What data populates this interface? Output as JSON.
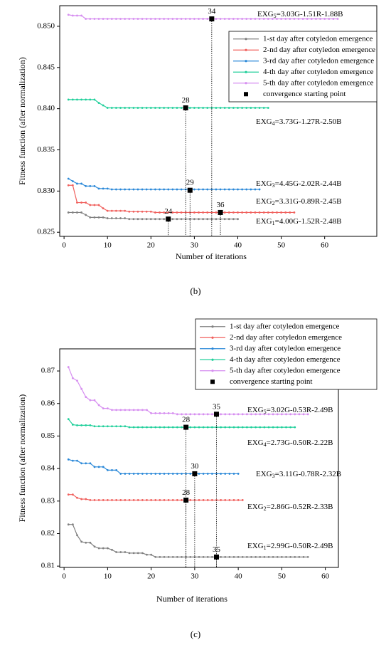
{
  "chart_data": [
    {
      "type": "line",
      "panel": "(b)",
      "xlabel": "Number of iterations",
      "ylabel": "Fitness function (after normalization)",
      "xlim": [
        -1,
        72
      ],
      "ylim": [
        0.8245,
        0.8525
      ],
      "xticks": [
        0,
        10,
        20,
        30,
        40,
        50,
        60
      ],
      "yticks": [
        0.825,
        {
          "value": 0.83,
          "label": "0.830"
        },
        0.835,
        {
          "value": 0.84,
          "label": "0.840"
        },
        0.845,
        {
          "value": 0.85,
          "label": "0.850"
        }
      ],
      "x": [
        1,
        2,
        3,
        4,
        5,
        6,
        7,
        8,
        9,
        10,
        11,
        12,
        13,
        14,
        15,
        16,
        17,
        18,
        19,
        20,
        21,
        22,
        23,
        24,
        25,
        26,
        27,
        28,
        29,
        30,
        31,
        32,
        33,
        34,
        35,
        36,
        37,
        38,
        39,
        40,
        41,
        42,
        43,
        44,
        45,
        46,
        47,
        48,
        49,
        50,
        51,
        52,
        53,
        54,
        55,
        56,
        57,
        58,
        59,
        60,
        61,
        62,
        63
      ],
      "series": [
        {
          "name": "1-st day after cotyledon emergence",
          "color": "#808080",
          "values": [
            0.8274,
            0.8274,
            0.8274,
            0.8274,
            0.8271,
            0.8268,
            0.8268,
            0.8268,
            0.8268,
            0.8267,
            0.8267,
            0.8267,
            0.8267,
            0.8267,
            0.8266,
            0.8266,
            0.8266,
            0.8266,
            0.8266,
            0.8266,
            0.8266,
            0.8266,
            0.8266,
            0.8266,
            0.8266,
            0.8266,
            0.8266,
            0.8266,
            0.8266,
            0.8266,
            0.8266,
            0.8266,
            0.8266,
            0.8266,
            0.8266,
            0.8266,
            0.8266,
            0.8266,
            0.8266,
            0.8266,
            null,
            null,
            null,
            null,
            null,
            null,
            null,
            null,
            null,
            null,
            null,
            null,
            null,
            null,
            null,
            null,
            null,
            null,
            null,
            null,
            null,
            null,
            null
          ]
        },
        {
          "name": "2-nd day after cotyledon emergence",
          "color": "#f0605d",
          "values": [
            0.8307,
            0.8307,
            0.8286,
            0.8286,
            0.8286,
            0.8283,
            0.8283,
            0.8283,
            0.8279,
            0.8276,
            0.8276,
            0.8276,
            0.8276,
            0.8276,
            0.8275,
            0.8275,
            0.8275,
            0.8275,
            0.8275,
            0.8275,
            0.8274,
            0.8274,
            0.8274,
            0.8274,
            0.8274,
            0.8274,
            0.8274,
            0.8274,
            0.8274,
            0.8274,
            0.8274,
            0.8274,
            0.8274,
            0.8274,
            0.8274,
            0.8274,
            0.8274,
            0.8274,
            0.8274,
            0.8274,
            0.8274,
            0.8274,
            0.8274,
            0.8274,
            0.8274,
            0.8274,
            0.8274,
            0.8274,
            0.8274,
            0.8274,
            0.8274,
            0.8274,
            0.8274,
            null,
            null,
            null,
            null,
            null,
            null,
            null,
            null,
            null,
            null
          ]
        },
        {
          "name": "3-rd day after cotyledon emergence",
          "color": "#2a88d8",
          "values": [
            0.8315,
            0.8312,
            0.8309,
            0.8309,
            0.8306,
            0.8306,
            0.8306,
            0.8303,
            0.8303,
            0.8303,
            0.8302,
            0.8302,
            0.8302,
            0.8302,
            0.8302,
            0.8302,
            0.8302,
            0.8302,
            0.8302,
            0.8302,
            0.8302,
            0.8302,
            0.8302,
            0.8302,
            0.8302,
            0.8302,
            0.8302,
            0.8302,
            0.8302,
            0.8302,
            0.8302,
            0.8302,
            0.8302,
            0.8302,
            0.8302,
            0.8302,
            0.8302,
            0.8302,
            0.8302,
            0.8302,
            0.8302,
            0.8302,
            0.8302,
            0.8302,
            0.8302,
            null,
            null,
            null,
            null,
            null,
            null,
            null,
            null,
            null,
            null,
            null,
            null,
            null,
            null,
            null,
            null,
            null,
            null
          ]
        },
        {
          "name": "4-th day after cotyledon emergence",
          "color": "#1fcf9a",
          "values": [
            0.8411,
            0.8411,
            0.8411,
            0.8411,
            0.8411,
            0.8411,
            0.8411,
            0.8407,
            0.8404,
            0.8401,
            0.8401,
            0.8401,
            0.8401,
            0.8401,
            0.8401,
            0.8401,
            0.8401,
            0.8401,
            0.8401,
            0.8401,
            0.8401,
            0.8401,
            0.8401,
            0.8401,
            0.8401,
            0.8401,
            0.8401,
            0.8401,
            0.8401,
            0.8401,
            0.8401,
            0.8401,
            0.8401,
            0.8401,
            0.8401,
            0.8401,
            0.8401,
            0.8401,
            0.8401,
            0.8401,
            0.8401,
            0.8401,
            0.8401,
            0.8401,
            0.8401,
            0.8401,
            0.8401,
            null,
            null,
            null,
            null,
            null,
            null,
            null,
            null,
            null,
            null,
            null,
            null,
            null,
            null,
            null,
            null
          ]
        },
        {
          "name": "5-th day after cotyledon emergence",
          "color": "#d68ef0",
          "values": [
            0.8514,
            0.8513,
            0.8513,
            0.8513,
            0.8509,
            0.8509,
            0.8509,
            0.8509,
            0.8509,
            0.8509,
            0.8509,
            0.8509,
            0.8509,
            0.8509,
            0.8509,
            0.8509,
            0.8509,
            0.8509,
            0.8509,
            0.8509,
            0.8509,
            0.8509,
            0.8509,
            0.8509,
            0.8509,
            0.8509,
            0.8509,
            0.8509,
            0.8509,
            0.8509,
            0.8509,
            0.8509,
            0.8509,
            0.8509,
            0.8509,
            0.8509,
            0.8509,
            0.8509,
            0.8509,
            0.8509,
            0.8509,
            0.8509,
            0.8509,
            0.8509,
            0.8509,
            0.8509,
            0.8509,
            0.8509,
            0.8509,
            0.8509,
            0.8509,
            0.8509,
            0.8509,
            0.8509,
            0.8509,
            0.8509,
            0.8509,
            0.8509,
            0.8509,
            0.8509,
            0.8509,
            0.8509,
            0.8509
          ]
        },
        {
          "name": "convergence starting point",
          "color": "#000000",
          "marker": "square",
          "x": [
            24,
            36,
            29,
            28,
            34
          ],
          "values": [
            0.8266,
            0.8274,
            0.8301,
            0.8401,
            0.8509
          ]
        }
      ],
      "annotations": [
        {
          "text": "EXG",
          "sub": "5",
          "rest": "=3.03G-1.51R-1.88B"
        },
        {
          "text": "EXG",
          "sub": "4",
          "rest": "=3.73G-1.27R-2.50B"
        },
        {
          "text": "EXG",
          "sub": "3",
          "rest": "=4.45G-2.02R-2.44B"
        },
        {
          "text": "EXG",
          "sub": "2",
          "rest": "=3.31G-0.89R-2.45B"
        },
        {
          "text": "EXG",
          "sub": "1",
          "rest": "=4.00G-1.52R-2.48B"
        }
      ]
    },
    {
      "type": "line",
      "panel": "(c)",
      "xlabel": "Number of iterations",
      "ylabel": "Fitness function (after normalization)",
      "xlim": [
        -1,
        63
      ],
      "ylim": [
        0.8096,
        0.8768
      ],
      "xticks": [
        0,
        10,
        20,
        30,
        40,
        50,
        60
      ],
      "yticks": [
        0.81,
        0.82,
        0.83,
        0.84,
        0.85,
        0.86,
        0.87
      ],
      "x": [
        1,
        2,
        3,
        4,
        5,
        6,
        7,
        8,
        9,
        10,
        11,
        12,
        13,
        14,
        15,
        16,
        17,
        18,
        19,
        20,
        21,
        22,
        23,
        24,
        25,
        26,
        27,
        28,
        29,
        30,
        31,
        32,
        33,
        34,
        35,
        36,
        37,
        38,
        39,
        40,
        41,
        42,
        43,
        44,
        45,
        46,
        47,
        48,
        49,
        50,
        51,
        52,
        53,
        54,
        55,
        56
      ],
      "series": [
        {
          "name": "1-st day after cotyledon emergence",
          "color": "#808080",
          "values": [
            0.8228,
            0.8228,
            0.8195,
            0.8175,
            0.8172,
            0.8172,
            0.816,
            0.8155,
            0.8155,
            0.8155,
            0.815,
            0.8143,
            0.8143,
            0.8143,
            0.814,
            0.814,
            0.814,
            0.814,
            0.8135,
            0.8135,
            0.8128,
            0.8128,
            0.8128,
            0.8128,
            0.8128,
            0.8128,
            0.8128,
            0.8128,
            0.8128,
            0.8128,
            0.8128,
            0.8128,
            0.8128,
            0.8128,
            0.8128,
            0.8128,
            0.8128,
            0.8128,
            0.8128,
            0.8128,
            0.8128,
            0.8128,
            0.8128,
            0.8128,
            0.8128,
            0.8128,
            0.8128,
            0.8128,
            0.8128,
            0.8128,
            0.8128,
            0.8128,
            0.8128,
            0.8128,
            0.8128,
            0.8128
          ]
        },
        {
          "name": "2-nd day after cotyledon emergence",
          "color": "#f0605d",
          "values": [
            0.832,
            0.832,
            0.831,
            0.8306,
            0.8306,
            0.8303,
            0.8303,
            0.8303,
            0.8303,
            0.8303,
            0.8303,
            0.8303,
            0.8303,
            0.8303,
            0.8303,
            0.8303,
            0.8303,
            0.8303,
            0.8303,
            0.8303,
            0.8303,
            0.8303,
            0.8303,
            0.8303,
            0.8303,
            0.8303,
            0.8303,
            0.8303,
            0.8303,
            0.8303,
            0.8303,
            0.8303,
            0.8303,
            0.8303,
            0.8303,
            0.8303,
            0.8303,
            0.8303,
            0.8303,
            0.8303,
            0.8303,
            null,
            null,
            null,
            null,
            null,
            null,
            null,
            null,
            null,
            null,
            null,
            null,
            null,
            null,
            null
          ]
        },
        {
          "name": "3-rd day after cotyledon emergence",
          "color": "#2a88d8",
          "values": [
            0.8428,
            0.8424,
            0.8424,
            0.8416,
            0.8416,
            0.8416,
            0.8405,
            0.8405,
            0.8405,
            0.8395,
            0.8395,
            0.8395,
            0.8384,
            0.8384,
            0.8384,
            0.8384,
            0.8384,
            0.8384,
            0.8384,
            0.8384,
            0.8384,
            0.8384,
            0.8384,
            0.8384,
            0.8384,
            0.8384,
            0.8384,
            0.8384,
            0.8384,
            0.8384,
            0.8384,
            0.8384,
            0.8384,
            0.8384,
            0.8384,
            0.8384,
            0.8384,
            0.8384,
            0.8384,
            0.8384,
            null,
            null,
            null,
            null,
            null,
            null,
            null,
            null,
            null,
            null,
            null,
            null,
            null,
            null,
            null,
            null
          ]
        },
        {
          "name": "4-th day after cotyledon emergence",
          "color": "#1fcf9a",
          "values": [
            0.8552,
            0.8535,
            0.8533,
            0.8533,
            0.8533,
            0.8533,
            0.853,
            0.853,
            0.853,
            0.853,
            0.853,
            0.853,
            0.853,
            0.853,
            0.8527,
            0.8527,
            0.8527,
            0.8527,
            0.8527,
            0.8527,
            0.8527,
            0.8527,
            0.8527,
            0.8527,
            0.8527,
            0.8527,
            0.8527,
            0.8527,
            0.8527,
            0.8527,
            0.8527,
            0.8527,
            0.8527,
            0.8527,
            0.8527,
            0.8527,
            0.8527,
            0.8527,
            0.8527,
            0.8527,
            0.8527,
            0.8527,
            0.8527,
            0.8527,
            0.8527,
            0.8527,
            0.8527,
            0.8527,
            0.8527,
            0.8527,
            0.8527,
            0.8527,
            0.8527,
            null,
            null,
            null
          ]
        },
        {
          "name": "5-th day after cotyledon emergence",
          "color": "#d68ef0",
          "values": [
            0.8712,
            0.8678,
            0.867,
            0.8645,
            0.862,
            0.861,
            0.861,
            0.8595,
            0.8585,
            0.8585,
            0.858,
            0.858,
            0.858,
            0.858,
            0.858,
            0.858,
            0.858,
            0.858,
            0.858,
            0.857,
            0.857,
            0.857,
            0.857,
            0.857,
            0.857,
            0.8567,
            0.8567,
            0.8567,
            0.8567,
            0.8567,
            0.8567,
            0.8567,
            0.8567,
            0.8567,
            0.8567,
            0.8567,
            0.8567,
            0.8567,
            0.8567,
            0.8567,
            0.8567,
            0.8567,
            0.8567,
            0.8567,
            0.8567,
            0.8567,
            0.8567,
            0.8567,
            0.8567,
            0.8567,
            0.8567,
            0.8567,
            0.8567,
            0.8567,
            0.8567,
            0.8567
          ]
        },
        {
          "name": "convergence starting point",
          "color": "#000000",
          "marker": "square",
          "x": [
            28,
            35,
            30,
            28,
            35
          ],
          "values": [
            0.8303,
            0.8128,
            0.8384,
            0.8527,
            0.8567
          ]
        }
      ],
      "annotations": [
        {
          "text": "EXG",
          "sub": "5",
          "rest": "=3.02G-0.53R-2.49B"
        },
        {
          "text": "EXG",
          "sub": "4",
          "rest": "=2.73G-0.50R-2.22B"
        },
        {
          "text": "EXG",
          "sub": "3",
          "rest": "=3.11G-0.78R-2.32B"
        },
        {
          "text": "EXG",
          "sub": "2",
          "rest": "=2.86G-0.52R-2.33B"
        },
        {
          "text": "EXG",
          "sub": "1",
          "rest": "=2.99G-0.50R-2.49B"
        }
      ]
    }
  ]
}
